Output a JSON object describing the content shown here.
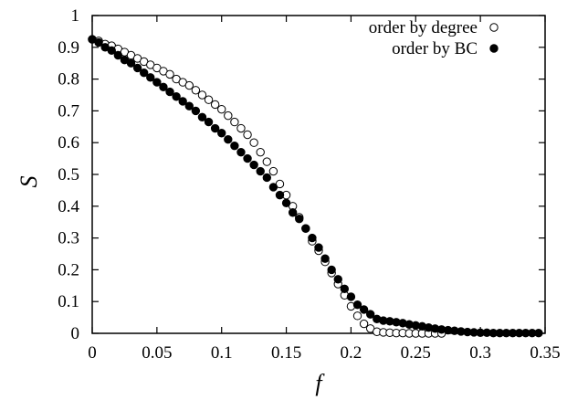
{
  "chart_data": {
    "type": "scatter",
    "title": "",
    "xlabel": "f",
    "ylabel": "S",
    "xlim": [
      0,
      0.35
    ],
    "ylim": [
      0,
      1
    ],
    "xticks": [
      "0",
      "0.05",
      "0.1",
      "0.15",
      "0.2",
      "0.25",
      "0.3",
      "0.35"
    ],
    "yticks": [
      "0",
      "0.1",
      "0.2",
      "0.3",
      "0.4",
      "0.5",
      "0.6",
      "0.7",
      "0.8",
      "0.9",
      "1"
    ],
    "grid": false,
    "legend_position": "top-right",
    "series": [
      {
        "name": "order by degree",
        "marker": "open-circle",
        "color": "#000000",
        "x": [
          0,
          0.005,
          0.01,
          0.015,
          0.02,
          0.025,
          0.03,
          0.035,
          0.04,
          0.045,
          0.05,
          0.055,
          0.06,
          0.065,
          0.07,
          0.075,
          0.08,
          0.085,
          0.09,
          0.095,
          0.1,
          0.105,
          0.11,
          0.115,
          0.12,
          0.125,
          0.13,
          0.135,
          0.14,
          0.145,
          0.15,
          0.155,
          0.16,
          0.165,
          0.17,
          0.175,
          0.18,
          0.185,
          0.19,
          0.195,
          0.2,
          0.205,
          0.21,
          0.215,
          0.22,
          0.225,
          0.23,
          0.235,
          0.24,
          0.245,
          0.25,
          0.255,
          0.26,
          0.265,
          0.27
        ],
        "y": [
          0.925,
          0.92,
          0.91,
          0.905,
          0.895,
          0.885,
          0.875,
          0.865,
          0.855,
          0.845,
          0.835,
          0.825,
          0.815,
          0.8,
          0.79,
          0.78,
          0.765,
          0.75,
          0.735,
          0.72,
          0.705,
          0.685,
          0.665,
          0.645,
          0.625,
          0.6,
          0.57,
          0.54,
          0.51,
          0.47,
          0.435,
          0.4,
          0.365,
          0.33,
          0.29,
          0.26,
          0.225,
          0.19,
          0.155,
          0.12,
          0.085,
          0.055,
          0.03,
          0.015,
          0.005,
          0.003,
          0.002,
          0.001,
          0.001,
          0,
          0,
          0,
          0,
          0,
          0
        ]
      },
      {
        "name": "order by BC",
        "marker": "filled-circle",
        "color": "#000000",
        "x": [
          0,
          0.005,
          0.01,
          0.015,
          0.02,
          0.025,
          0.03,
          0.035,
          0.04,
          0.045,
          0.05,
          0.055,
          0.06,
          0.065,
          0.07,
          0.075,
          0.08,
          0.085,
          0.09,
          0.095,
          0.1,
          0.105,
          0.11,
          0.115,
          0.12,
          0.125,
          0.13,
          0.135,
          0.14,
          0.145,
          0.15,
          0.155,
          0.16,
          0.165,
          0.17,
          0.175,
          0.18,
          0.185,
          0.19,
          0.195,
          0.2,
          0.205,
          0.21,
          0.215,
          0.22,
          0.225,
          0.23,
          0.235,
          0.24,
          0.245,
          0.25,
          0.255,
          0.26,
          0.265,
          0.27,
          0.275,
          0.28,
          0.285,
          0.29,
          0.295,
          0.3,
          0.305,
          0.31,
          0.315,
          0.32,
          0.325,
          0.33,
          0.335,
          0.34,
          0.345
        ],
        "y": [
          0.925,
          0.915,
          0.9,
          0.89,
          0.875,
          0.86,
          0.85,
          0.835,
          0.82,
          0.805,
          0.79,
          0.775,
          0.76,
          0.745,
          0.73,
          0.715,
          0.7,
          0.68,
          0.665,
          0.645,
          0.63,
          0.61,
          0.59,
          0.57,
          0.55,
          0.53,
          0.51,
          0.49,
          0.46,
          0.435,
          0.41,
          0.38,
          0.36,
          0.33,
          0.3,
          0.27,
          0.235,
          0.2,
          0.17,
          0.14,
          0.115,
          0.09,
          0.075,
          0.06,
          0.045,
          0.04,
          0.038,
          0.035,
          0.032,
          0.028,
          0.025,
          0.022,
          0.018,
          0.015,
          0.012,
          0.01,
          0.008,
          0.006,
          0.004,
          0.003,
          0.002,
          0.002,
          0.001,
          0.001,
          0.001,
          0.001,
          0.001,
          0.001,
          0.001,
          0.001
        ]
      }
    ]
  }
}
